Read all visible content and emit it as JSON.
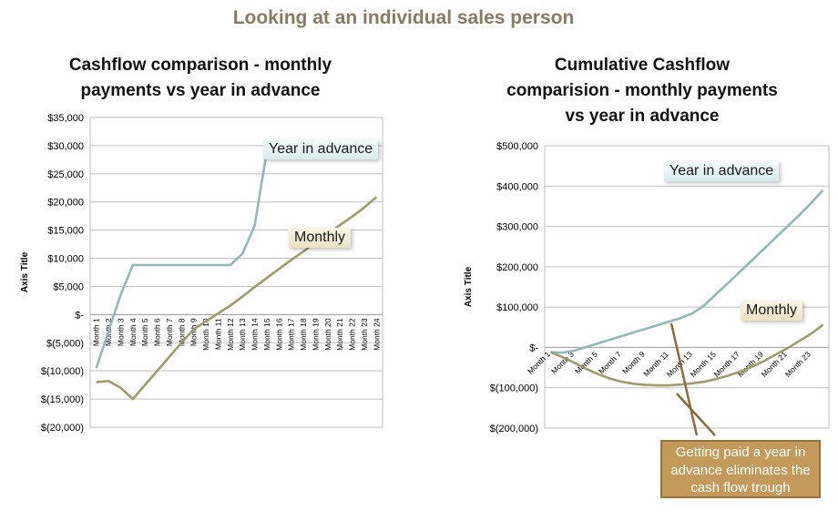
{
  "page_title": "Looking at an individual sales person",
  "note": "Getting paid a year in advance eliminates the cash flow trough",
  "colors": {
    "year_in_advance": "#93b8ba",
    "monthly": "#a09a6c",
    "note_fill": "#c39a5a",
    "title": "#8a7a63"
  },
  "chart_data": [
    {
      "type": "line",
      "title": "Cashflow comparison - monthly payments vs year in advance",
      "title_lines": [
        "Cashflow comparison -  monthly",
        "payments vs year in advance"
      ],
      "ylabel": "Axis Title",
      "ylim": [
        -20000,
        35000
      ],
      "yticks": [
        35000,
        30000,
        25000,
        20000,
        15000,
        10000,
        5000,
        0,
        -5000,
        -10000,
        -15000,
        -20000
      ],
      "ytick_labels": [
        "$35,000",
        "$30,000",
        "$25,000",
        "$20,000",
        "$15,000",
        "$10,000",
        "$5,000",
        "$-",
        "$(5,000)",
        "$(10,000)",
        "$(15,000)",
        "$(20,000)"
      ],
      "categories": [
        "Month 1",
        "Month 2",
        "Month 3",
        "Month 4",
        "Month 5",
        "Month 6",
        "Month 7",
        "Month 8",
        "Month 9",
        "Month 10",
        "Month 11",
        "Month 12",
        "Month 13",
        "Month 14",
        "Month 15",
        "Month 16",
        "Month 17",
        "Month 18",
        "Month 19",
        "Month 20",
        "Month 21",
        "Month 22",
        "Month 23",
        "Month 24"
      ],
      "grid": true,
      "series": [
        {
          "name": "Year in advance",
          "values": [
            -9500,
            -3000,
            3500,
            8800,
            8800,
            8800,
            8800,
            8800,
            8800,
            8800,
            8800,
            8800,
            10800,
            15800,
            29000,
            null,
            null,
            null,
            null,
            null,
            null,
            null,
            null,
            null
          ]
        },
        {
          "name": "Monthly",
          "values": [
            -12000,
            -11800,
            -13000,
            -15000,
            -12500,
            -10000,
            -7500,
            -5000,
            -2600,
            -1200,
            200,
            1600,
            3200,
            4900,
            6500,
            8100,
            9700,
            11200,
            12800,
            14300,
            15900,
            17400,
            19000,
            20900
          ]
        }
      ]
    },
    {
      "type": "line",
      "title": "Cumulative Cashflow comparision - monthly payments vs year in advance",
      "title_lines": [
        "Cumulative Cashflow",
        "comparision -  monthly payments",
        "vs year in advance"
      ],
      "ylabel": "Axis Title",
      "ylim": [
        -200000,
        500000
      ],
      "yticks": [
        500000,
        400000,
        300000,
        200000,
        100000,
        0,
        -100000,
        -200000
      ],
      "ytick_labels": [
        "$500,000",
        "$400,000",
        "$300,000",
        "$200,000",
        "$100,000",
        "$-",
        "$(100,000)",
        "$(200,000)"
      ],
      "categories": [
        "Month 1",
        "Month 2",
        "Month 3",
        "Month 4",
        "Month 5",
        "Month 6",
        "Month 7",
        "Month 8",
        "Month 9",
        "Month 10",
        "Month 11",
        "Month 12",
        "Month 13",
        "Month 14",
        "Month 15",
        "Month 16",
        "Month 17",
        "Month 18",
        "Month 19",
        "Month 20",
        "Month 21",
        "Month 22",
        "Month 23",
        "Month 24"
      ],
      "tick_label_categories": [
        "Month 1",
        "Month 3",
        "Month 5",
        "Month 7",
        "Month 9",
        "Month 11",
        "Month 13",
        "Month 15",
        "Month 17",
        "Month 19",
        "Month 21",
        "Month 23"
      ],
      "grid": true,
      "series": [
        {
          "name": "Year in advance",
          "values": [
            -12000,
            -13000,
            -8000,
            1000,
            10000,
            19000,
            28000,
            37000,
            46000,
            55000,
            64000,
            73000,
            85000,
            105000,
            133000,
            160000,
            188000,
            216000,
            244000,
            272000,
            300000,
            328000,
            358000,
            390000
          ]
        },
        {
          "name": "Monthly",
          "values": [
            -12000,
            -24000,
            -38000,
            -53000,
            -66000,
            -77000,
            -85000,
            -90000,
            -93000,
            -94000,
            -94000,
            -92000,
            -89000,
            -85000,
            -78000,
            -70000,
            -60000,
            -48000,
            -34000,
            -18000,
            -2000,
            16000,
            34000,
            56000
          ]
        }
      ]
    }
  ]
}
